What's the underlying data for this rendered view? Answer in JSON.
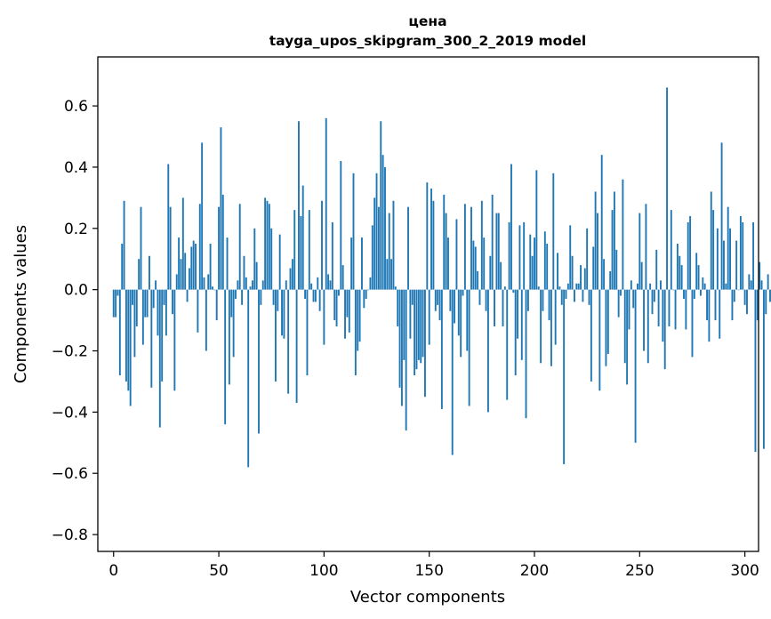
{
  "chart_data": {
    "type": "bar",
    "title": "цена",
    "subtitle": "tayga_upos_skipgram_300_2_2019 model",
    "xlabel": "Vector components",
    "ylabel": "Components values",
    "xlim": [
      -7.5,
      306.5
    ],
    "ylim": [
      -0.855,
      0.76
    ],
    "xticks": [
      0,
      50,
      100,
      150,
      200,
      250,
      300
    ],
    "xtick_labels": [
      "0",
      "50",
      "100",
      "150",
      "200",
      "250",
      "300"
    ],
    "yticks": [
      -0.8,
      -0.6,
      -0.4,
      -0.2,
      0.0,
      0.2,
      0.4,
      0.6
    ],
    "ytick_labels": [
      "−0.8",
      "−0.6",
      "−0.4",
      "−0.2",
      "0.0",
      "0.2",
      "0.4",
      "0.6"
    ],
    "bar_color": "#1f77b4",
    "grid": false,
    "values": [
      -0.09,
      -0.09,
      -0.02,
      -0.28,
      0.15,
      0.29,
      -0.3,
      -0.33,
      -0.38,
      -0.05,
      -0.22,
      -0.12,
      0.1,
      0.27,
      -0.18,
      -0.09,
      -0.09,
      0.11,
      -0.32,
      -0.06,
      0.03,
      -0.15,
      -0.45,
      -0.3,
      -0.05,
      -0.15,
      0.41,
      0.27,
      -0.08,
      -0.33,
      0.05,
      0.17,
      0.1,
      0.3,
      0.12,
      -0.04,
      0.07,
      0.14,
      0.16,
      0.15,
      -0.14,
      0.28,
      0.48,
      0.04,
      -0.2,
      0.05,
      0.15,
      0.01,
      0.0,
      -0.1,
      0.27,
      0.53,
      0.31,
      -0.44,
      0.17,
      -0.31,
      -0.09,
      -0.22,
      -0.03,
      0.03,
      0.28,
      -0.05,
      0.11,
      0.04,
      -0.58,
      0.01,
      0.03,
      0.2,
      0.09,
      -0.47,
      -0.05,
      0.03,
      0.3,
      0.29,
      0.28,
      0.2,
      -0.05,
      -0.3,
      -0.07,
      0.18,
      -0.15,
      -0.16,
      0.03,
      -0.34,
      0.07,
      0.1,
      0.26,
      -0.37,
      0.55,
      0.24,
      0.34,
      -0.03,
      -0.28,
      0.26,
      0.02,
      -0.04,
      -0.04,
      0.04,
      -0.07,
      0.29,
      -0.18,
      0.56,
      0.05,
      0.03,
      0.22,
      -0.1,
      -0.12,
      -0.02,
      0.42,
      0.08,
      -0.16,
      -0.09,
      -0.14,
      0.17,
      0.38,
      -0.28,
      -0.2,
      -0.17,
      0.17,
      -0.06,
      -0.03,
      0.0,
      0.04,
      0.21,
      0.3,
      0.38,
      0.27,
      0.55,
      0.44,
      0.4,
      0.1,
      0.25,
      0.1,
      0.29,
      0.01,
      -0.12,
      -0.32,
      -0.38,
      -0.23,
      -0.46,
      0.27,
      -0.16,
      -0.05,
      -0.28,
      -0.26,
      -0.23,
      -0.24,
      -0.22,
      -0.35,
      0.35,
      -0.18,
      0.33,
      0.29,
      -0.07,
      -0.05,
      -0.1,
      -0.39,
      0.31,
      0.25,
      0.17,
      -0.07,
      -0.54,
      -0.11,
      0.23,
      -0.15,
      -0.22,
      -0.02,
      0.28,
      -0.2,
      -0.38,
      0.27,
      0.16,
      0.14,
      0.06,
      -0.05,
      0.29,
      0.17,
      -0.07,
      -0.4,
      0.11,
      0.31,
      -0.12,
      0.25,
      0.25,
      0.09,
      -0.12,
      0.01,
      -0.36,
      0.22,
      0.41,
      -0.01,
      -0.28,
      -0.16,
      0.21,
      -0.23,
      0.22,
      -0.42,
      -0.07,
      0.18,
      0.11,
      0.17,
      0.39,
      0.01,
      -0.24,
      -0.07,
      0.19,
      0.15,
      -0.1,
      -0.25,
      0.38,
      -0.18,
      0.12,
      0.01,
      -0.05,
      -0.57,
      -0.03,
      0.02,
      0.21,
      0.11,
      -0.04,
      0.02,
      0.02,
      0.08,
      -0.04,
      0.07,
      0.2,
      -0.05,
      -0.3,
      0.14,
      0.32,
      0.25,
      -0.33,
      0.44,
      0.1,
      -0.25,
      -0.21,
      0.06,
      0.26,
      0.32,
      0.13,
      -0.09,
      -0.02,
      0.36,
      -0.24,
      -0.31,
      -0.13,
      0.03,
      -0.06,
      -0.5,
      0.02,
      0.25,
      0.09,
      -0.2,
      0.28,
      -0.24,
      0.02,
      -0.08,
      -0.04,
      0.13,
      -0.12,
      0.03,
      -0.17,
      -0.26,
      0.66,
      -0.12,
      0.26,
      0.0,
      -0.13,
      0.15,
      0.11,
      0.08,
      -0.03,
      -0.13,
      0.22,
      0.24,
      -0.22,
      -0.03,
      0.12,
      0.08,
      -0.02,
      0.04,
      0.02,
      -0.1,
      -0.17,
      0.32,
      0.26,
      -0.1,
      0.2,
      -0.16,
      0.48,
      0.16,
      0.02,
      0.27,
      0.2,
      -0.1,
      -0.04,
      0.16,
      0.0,
      0.24,
      0.22,
      -0.05,
      -0.08,
      0.05,
      0.03,
      0.22,
      -0.53,
      -0.1,
      0.09,
      0.03,
      -0.52,
      -0.08,
      0.05,
      -0.04,
      0.1
    ]
  }
}
